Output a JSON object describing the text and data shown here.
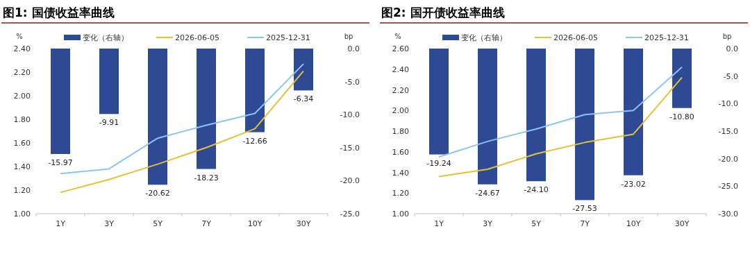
{
  "chart_data": [
    {
      "type": "bar",
      "title": "图1: 国债收益率曲线",
      "ylabel": "%",
      "y2label": "bp",
      "legend": "top",
      "categories": [
        "1Y",
        "3Y",
        "5Y",
        "7Y",
        "10Y",
        "30Y"
      ],
      "ylim": [
        1.0,
        2.4
      ],
      "yticks": [
        {
          "value": 1.0,
          "label": "1.00"
        },
        {
          "value": 1.2,
          "label": "1.20"
        },
        {
          "value": 1.4,
          "label": "1.40"
        },
        {
          "value": 1.6,
          "label": "1.60"
        },
        {
          "value": 1.8,
          "label": "1.80"
        },
        {
          "value": 2.0,
          "label": "2.00"
        },
        {
          "value": 2.2,
          "label": "2.20"
        },
        {
          "value": 2.4,
          "label": "2.40"
        }
      ],
      "y2lim": [
        -25,
        0
      ],
      "y2ticks": [
        {
          "value": -25,
          "label": "-25.0"
        },
        {
          "value": -20,
          "label": "-20.0"
        },
        {
          "value": -15,
          "label": "-15.0"
        },
        {
          "value": -10,
          "label": "-10.0"
        },
        {
          "value": -5,
          "label": "-5.0"
        },
        {
          "value": 0,
          "label": "0.0"
        }
      ],
      "series": [
        {
          "name": "变化（右轴）",
          "axis": "y2",
          "color": "#2e4a94",
          "values": [
            -15.97,
            -9.91,
            -20.62,
            -18.23,
            -12.66,
            -6.34
          ],
          "value_labels": [
            "-15.97",
            "-9.91",
            "-20.62",
            "-18.23",
            "-12.66",
            "-6.34"
          ]
        },
        {
          "name": "2026-06-05",
          "type": "line",
          "color": "#e8c030",
          "values": [
            1.18,
            1.29,
            1.42,
            1.56,
            1.72,
            2.21
          ]
        },
        {
          "name": "2025-12-31",
          "type": "line",
          "color": "#8cc4f5",
          "values": [
            1.34,
            1.38,
            1.64,
            1.75,
            1.85,
            2.27
          ]
        }
      ]
    },
    {
      "type": "bar",
      "title": "图2: 国开债收益率曲线",
      "ylabel": "%",
      "y2label": "bp",
      "legend": "top",
      "categories": [
        "1Y",
        "3Y",
        "5Y",
        "7Y",
        "10Y",
        "30Y"
      ],
      "ylim": [
        1.0,
        2.6
      ],
      "yticks": [
        {
          "value": 1.0,
          "label": "1.00"
        },
        {
          "value": 1.2,
          "label": "1.20"
        },
        {
          "value": 1.4,
          "label": "1.40"
        },
        {
          "value": 1.6,
          "label": "1.60"
        },
        {
          "value": 1.8,
          "label": "1.80"
        },
        {
          "value": 2.0,
          "label": "2.00"
        },
        {
          "value": 2.2,
          "label": "2.20"
        },
        {
          "value": 2.4,
          "label": "2.40"
        },
        {
          "value": 2.6,
          "label": "2.60"
        }
      ],
      "y2lim": [
        -30,
        0
      ],
      "y2ticks": [
        {
          "value": -30,
          "label": "-30.0"
        },
        {
          "value": -25,
          "label": "-25.0"
        },
        {
          "value": -20,
          "label": "-20.0"
        },
        {
          "value": -15,
          "label": "-15.0"
        },
        {
          "value": -10,
          "label": "-10.0"
        },
        {
          "value": -5,
          "label": "-5.0"
        },
        {
          "value": 0,
          "label": "0.0"
        }
      ],
      "series": [
        {
          "name": "变化（右轴）",
          "axis": "y2",
          "color": "#2e4a94",
          "values": [
            -19.24,
            -24.67,
            -24.1,
            -27.53,
            -23.02,
            -10.8
          ],
          "value_labels": [
            "-19.24",
            "-24.67",
            "-24.10",
            "-27.53",
            "-23.02",
            "-10.80"
          ]
        },
        {
          "name": "2026-06-05",
          "type": "line",
          "color": "#e8c030",
          "values": [
            1.36,
            1.43,
            1.58,
            1.69,
            1.77,
            2.32
          ]
        },
        {
          "name": "2025-12-31",
          "type": "line",
          "color": "#8cc4f5",
          "values": [
            1.55,
            1.7,
            1.82,
            1.96,
            2.0,
            2.42
          ]
        }
      ]
    }
  ]
}
